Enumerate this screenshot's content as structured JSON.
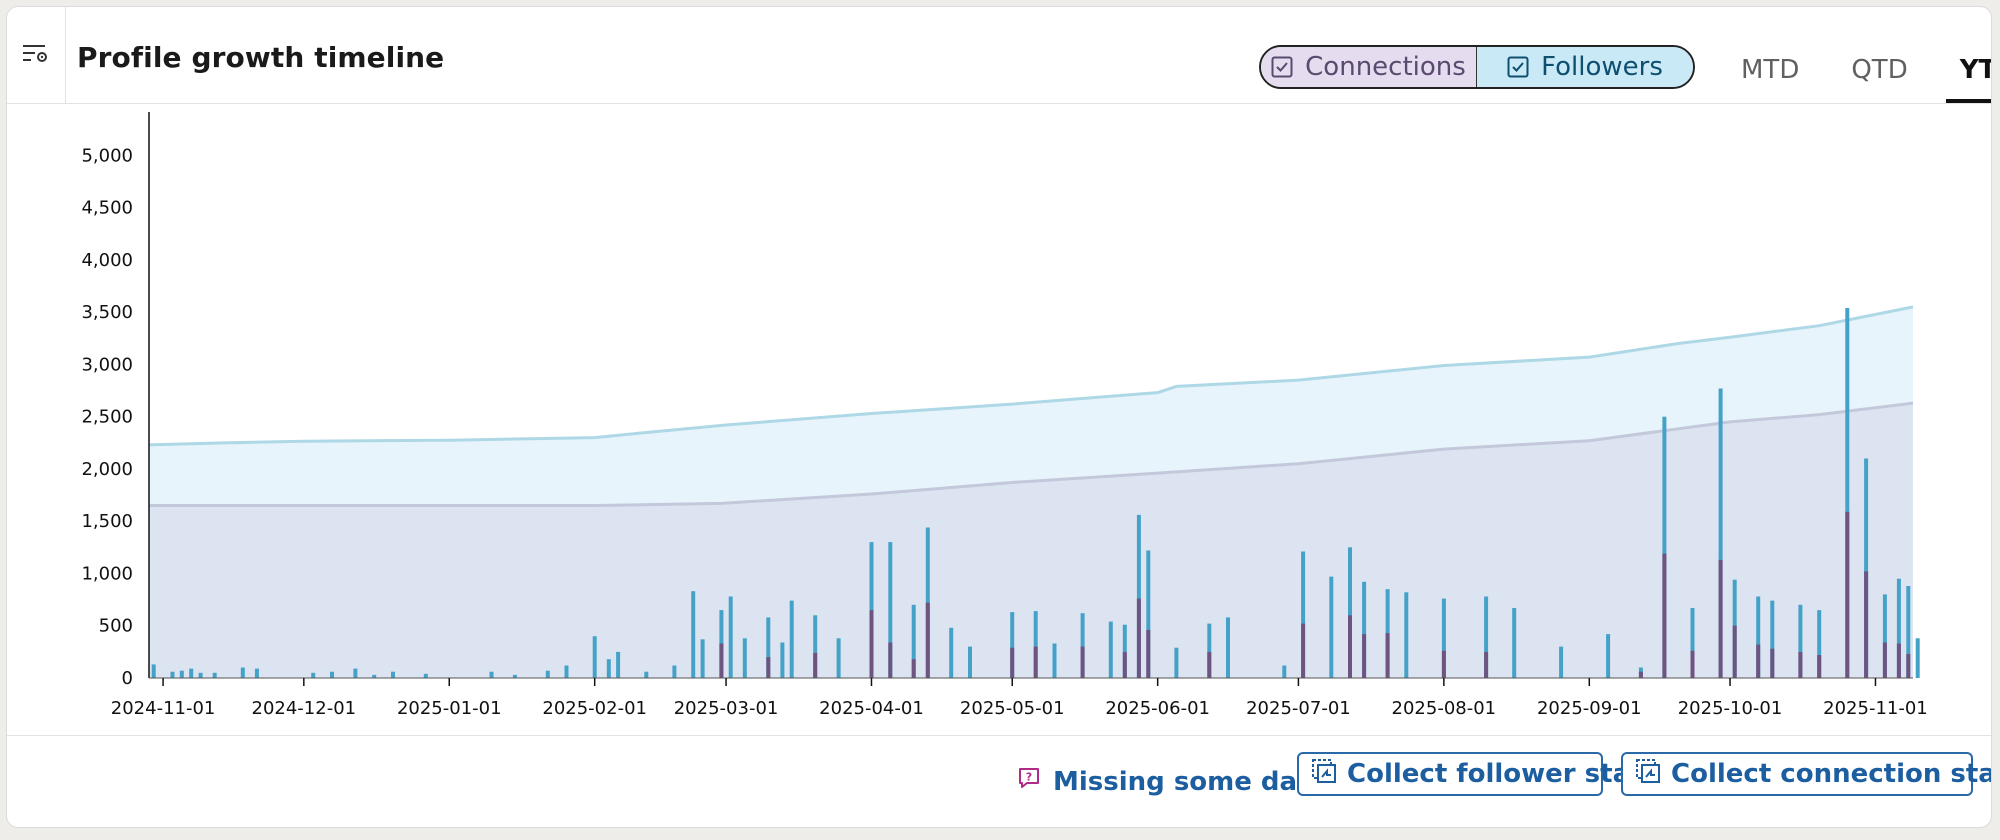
{
  "header": {
    "title": "Profile growth timeline",
    "toggles": [
      {
        "label": "Connections",
        "checked": true,
        "color": "#e6dcef"
      },
      {
        "label": "Followers",
        "checked": true,
        "color": "#c9e9f6"
      }
    ],
    "tabs": [
      {
        "label": "MTD",
        "active": false
      },
      {
        "label": "QTD",
        "active": false
      },
      {
        "label": "YTD",
        "active": true
      }
    ]
  },
  "footer": {
    "missing_label": "Missing some data?",
    "collect_followers_label": "Collect follower stats",
    "collect_connections_label": "Collect connection stats"
  },
  "colors": {
    "followers_area": "#e7f4fb",
    "followers_line": "#aed8e6",
    "connections_area": "#dde4f1",
    "connections_line": "#c3c8db",
    "followers_bar": "#44a2c9",
    "connections_bar": "#6e5481",
    "link": "#1c5ea0",
    "help_icon": "#b02a8a"
  },
  "chart_data": {
    "type": "area",
    "title": "",
    "ylim": [
      0,
      5300
    ],
    "xlim": [
      "2024-10-29",
      "2025-11-09"
    ],
    "yticks": [
      0,
      500,
      1000,
      1500,
      2000,
      2500,
      3000,
      3500,
      4000,
      4500,
      5000
    ],
    "ytick_labels": [
      "0",
      "500",
      "1,000",
      "1,500",
      "2,000",
      "2,500",
      "3,000",
      "3,500",
      "4,000",
      "4,500",
      "5,000"
    ],
    "xticks": [
      "2024-11-01",
      "2024-12-01",
      "2025-01-01",
      "2025-02-01",
      "2025-03-01",
      "2025-04-01",
      "2025-05-01",
      "2025-06-01",
      "2025-07-01",
      "2025-08-01",
      "2025-09-01",
      "2025-10-01",
      "2025-11-01"
    ],
    "cumulative_series": [
      {
        "name": "Followers",
        "points": [
          [
            "2024-10-29",
            2230
          ],
          [
            "2024-11-15",
            2250
          ],
          [
            "2024-12-01",
            2265
          ],
          [
            "2025-01-01",
            2275
          ],
          [
            "2025-02-01",
            2300
          ],
          [
            "2025-02-10",
            2340
          ],
          [
            "2025-03-01",
            2420
          ],
          [
            "2025-04-01",
            2530
          ],
          [
            "2025-05-01",
            2620
          ],
          [
            "2025-06-01",
            2730
          ],
          [
            "2025-06-05",
            2790
          ],
          [
            "2025-07-01",
            2850
          ],
          [
            "2025-08-01",
            2990
          ],
          [
            "2025-09-01",
            3070
          ],
          [
            "2025-09-20",
            3200
          ],
          [
            "2025-10-01",
            3260
          ],
          [
            "2025-10-20",
            3370
          ],
          [
            "2025-11-09",
            3550
          ]
        ]
      },
      {
        "name": "Connections",
        "points": [
          [
            "2024-10-29",
            1650
          ],
          [
            "2025-02-01",
            1650
          ],
          [
            "2025-02-28",
            1670
          ],
          [
            "2025-04-01",
            1760
          ],
          [
            "2025-05-01",
            1870
          ],
          [
            "2025-06-01",
            1960
          ],
          [
            "2025-07-01",
            2050
          ],
          [
            "2025-08-01",
            2190
          ],
          [
            "2025-09-01",
            2270
          ],
          [
            "2025-10-01",
            2450
          ],
          [
            "2025-10-20",
            2520
          ],
          [
            "2025-11-09",
            2630
          ]
        ]
      }
    ],
    "daily_series": [
      {
        "name": "Followers",
        "points": [
          [
            "2024-10-30",
            130
          ],
          [
            "2024-11-03",
            60
          ],
          [
            "2024-11-05",
            70
          ],
          [
            "2024-11-07",
            90
          ],
          [
            "2024-11-09",
            50
          ],
          [
            "2024-11-12",
            50
          ],
          [
            "2024-11-18",
            100
          ],
          [
            "2024-11-21",
            90
          ],
          [
            "2024-12-03",
            50
          ],
          [
            "2024-12-07",
            60
          ],
          [
            "2024-12-12",
            90
          ],
          [
            "2024-12-16",
            30
          ],
          [
            "2024-12-20",
            60
          ],
          [
            "2024-12-27",
            40
          ],
          [
            "2025-01-10",
            60
          ],
          [
            "2025-01-15",
            30
          ],
          [
            "2025-01-22",
            70
          ],
          [
            "2025-01-26",
            120
          ],
          [
            "2025-02-01",
            400
          ],
          [
            "2025-02-04",
            180
          ],
          [
            "2025-02-06",
            250
          ],
          [
            "2025-02-12",
            60
          ],
          [
            "2025-02-18",
            120
          ],
          [
            "2025-02-22",
            830
          ],
          [
            "2025-02-24",
            370
          ],
          [
            "2025-02-28",
            650
          ],
          [
            "2025-03-02",
            780
          ],
          [
            "2025-03-05",
            380
          ],
          [
            "2025-03-10",
            580
          ],
          [
            "2025-03-13",
            340
          ],
          [
            "2025-03-15",
            740
          ],
          [
            "2025-03-20",
            600
          ],
          [
            "2025-03-25",
            380
          ],
          [
            "2025-04-01",
            1300
          ],
          [
            "2025-04-05",
            1300
          ],
          [
            "2025-04-13",
            1440
          ],
          [
            "2025-04-10",
            700
          ],
          [
            "2025-04-18",
            480
          ],
          [
            "2025-04-22",
            300
          ],
          [
            "2025-05-01",
            630
          ],
          [
            "2025-05-06",
            640
          ],
          [
            "2025-05-10",
            330
          ],
          [
            "2025-05-16",
            620
          ],
          [
            "2025-05-22",
            540
          ],
          [
            "2025-05-28",
            1560
          ],
          [
            "2025-05-30",
            1220
          ],
          [
            "2025-05-25",
            510
          ],
          [
            "2025-06-05",
            290
          ],
          [
            "2025-06-12",
            520
          ],
          [
            "2025-06-16",
            580
          ],
          [
            "2025-06-28",
            120
          ],
          [
            "2025-07-02",
            1210
          ],
          [
            "2025-07-08",
            970
          ],
          [
            "2025-07-12",
            1250
          ],
          [
            "2025-07-15",
            920
          ],
          [
            "2025-07-20",
            850
          ],
          [
            "2025-07-24",
            820
          ],
          [
            "2025-08-01",
            760
          ],
          [
            "2025-08-10",
            780
          ],
          [
            "2025-08-16",
            670
          ],
          [
            "2025-08-26",
            300
          ],
          [
            "2025-09-05",
            420
          ],
          [
            "2025-09-12",
            100
          ],
          [
            "2025-09-17",
            2500
          ],
          [
            "2025-09-23",
            670
          ],
          [
            "2025-09-29",
            2770
          ],
          [
            "2025-10-02",
            940
          ],
          [
            "2025-10-07",
            780
          ],
          [
            "2025-10-10",
            740
          ],
          [
            "2025-10-16",
            700
          ],
          [
            "2025-10-20",
            650
          ],
          [
            "2025-10-26",
            3540
          ],
          [
            "2025-10-30",
            2100
          ],
          [
            "2025-11-03",
            800
          ],
          [
            "2025-11-06",
            950
          ],
          [
            "2025-11-08",
            880
          ],
          [
            "2025-11-10",
            380
          ]
        ]
      },
      {
        "name": "Connections",
        "points": [
          [
            "2025-02-28",
            330
          ],
          [
            "2025-03-10",
            200
          ],
          [
            "2025-03-20",
            240
          ],
          [
            "2025-04-01",
            650
          ],
          [
            "2025-04-05",
            340
          ],
          [
            "2025-04-13",
            720
          ],
          [
            "2025-04-10",
            180
          ],
          [
            "2025-05-01",
            290
          ],
          [
            "2025-05-06",
            300
          ],
          [
            "2025-05-16",
            300
          ],
          [
            "2025-05-28",
            760
          ],
          [
            "2025-05-30",
            460
          ],
          [
            "2025-05-25",
            250
          ],
          [
            "2025-06-12",
            250
          ],
          [
            "2025-07-02",
            520
          ],
          [
            "2025-07-12",
            600
          ],
          [
            "2025-07-15",
            420
          ],
          [
            "2025-07-20",
            430
          ],
          [
            "2025-08-01",
            260
          ],
          [
            "2025-08-10",
            250
          ],
          [
            "2025-09-12",
            60
          ],
          [
            "2025-09-17",
            1190
          ],
          [
            "2025-09-23",
            260
          ],
          [
            "2025-09-29",
            1130
          ],
          [
            "2025-10-02",
            500
          ],
          [
            "2025-10-07",
            320
          ],
          [
            "2025-10-10",
            280
          ],
          [
            "2025-10-16",
            250
          ],
          [
            "2025-10-20",
            220
          ],
          [
            "2025-10-26",
            1590
          ],
          [
            "2025-10-30",
            1020
          ],
          [
            "2025-11-03",
            340
          ],
          [
            "2025-11-06",
            330
          ],
          [
            "2025-11-08",
            230
          ]
        ]
      }
    ]
  }
}
